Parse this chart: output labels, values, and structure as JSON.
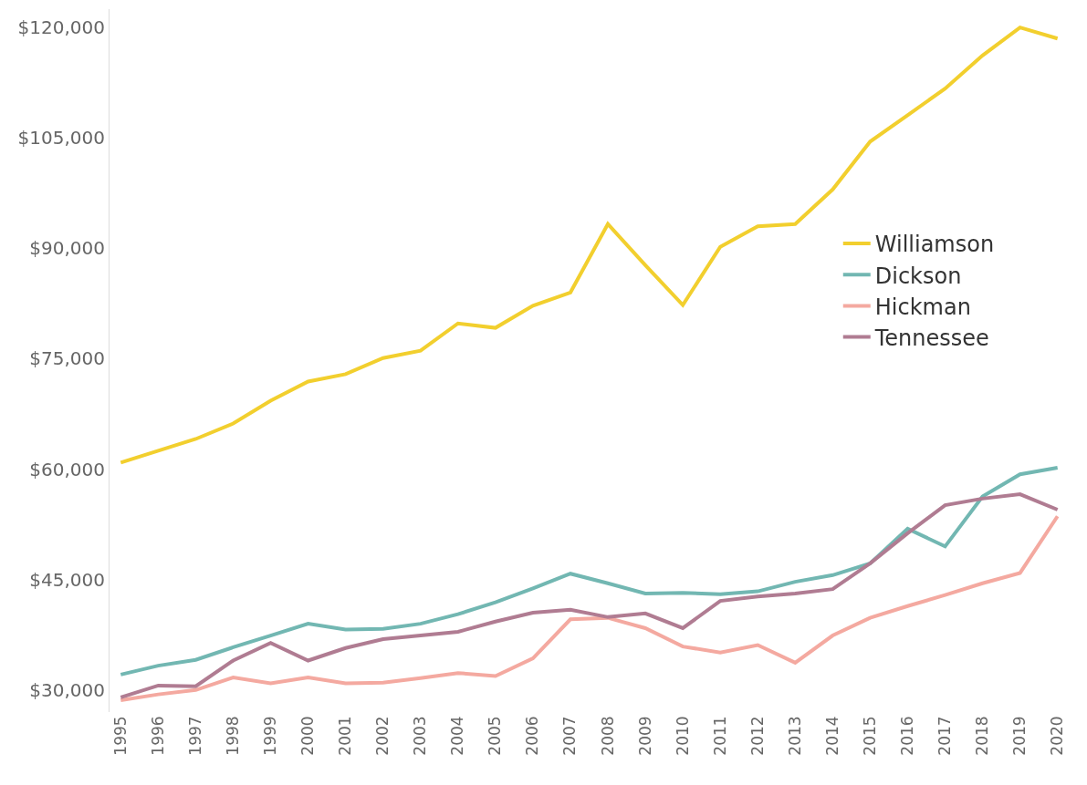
{
  "chart_data": {
    "type": "line",
    "categories": [
      "1995",
      "1996",
      "1997",
      "1998",
      "1999",
      "2000",
      "2001",
      "2002",
      "2003",
      "2004",
      "2005",
      "2006",
      "2007",
      "2008",
      "2009",
      "2010",
      "2011",
      "2012",
      "2013",
      "2014",
      "2015",
      "2016",
      "2017",
      "2018",
      "2019",
      "2020"
    ],
    "series": [
      {
        "name": "Williamson",
        "color": "#f2cf2e",
        "values": [
          60900,
          62500,
          64100,
          66200,
          69300,
          71900,
          72900,
          75100,
          76100,
          79800,
          79200,
          82200,
          84000,
          93300,
          87700,
          82300,
          90200,
          93000,
          93300,
          98000,
          104500,
          108100,
          111700,
          116200,
          120000,
          118500
        ]
      },
      {
        "name": "Dickson",
        "color": "#72b7b2",
        "values": [
          32100,
          33300,
          34100,
          35800,
          37400,
          39000,
          38200,
          38300,
          39000,
          40300,
          41900,
          43800,
          45800,
          44500,
          43100,
          43200,
          43000,
          43400,
          44700,
          45600,
          47200,
          51900,
          49500,
          56300,
          59300,
          60200
        ]
      },
      {
        "name": "Hickman",
        "color": "#f4a9a0",
        "values": [
          28600,
          29400,
          30000,
          31700,
          30900,
          31700,
          30900,
          31000,
          31600,
          32300,
          31900,
          34300,
          39600,
          39800,
          38400,
          35900,
          35100,
          36100,
          33700,
          37400,
          39800,
          41400,
          42900,
          44500,
          45900,
          53600
        ]
      },
      {
        "name": "Tennessee",
        "color": "#b07c92",
        "values": [
          29000,
          30600,
          30500,
          34000,
          36400,
          34000,
          35700,
          36900,
          37400,
          37900,
          39300,
          40500,
          40900,
          39900,
          40400,
          38400,
          42100,
          42700,
          43100,
          43700,
          47200,
          51300,
          55100,
          56000,
          56600,
          54500
        ]
      }
    ],
    "ylim": [
      27000,
      122500
    ],
    "yticks": [
      {
        "value": 30000,
        "label": "$30,000"
      },
      {
        "value": 45000,
        "label": "$45,000"
      },
      {
        "value": 60000,
        "label": "$60,000"
      },
      {
        "value": 75000,
        "label": "$75,000"
      },
      {
        "value": 90000,
        "label": "$90,000"
      },
      {
        "value": 105000,
        "label": "$105,000"
      },
      {
        "value": 120000,
        "label": "$120,000"
      }
    ],
    "legend": "right",
    "marker": "none",
    "line_style": "solid"
  }
}
